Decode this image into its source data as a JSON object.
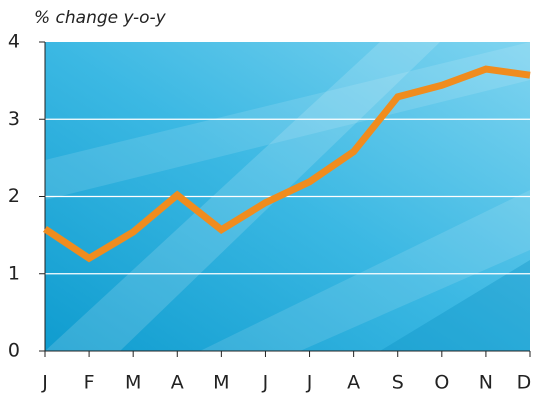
{
  "chart_data": {
    "type": "line",
    "ylabel": "% change y-o-y",
    "categories": [
      "J",
      "F",
      "M",
      "A",
      "M",
      "J",
      "J",
      "A",
      "S",
      "O",
      "N",
      "D"
    ],
    "series": [
      {
        "name": null,
        "color": "#f08c1e",
        "values": [
          1.58,
          1.2,
          1.54,
          2.02,
          1.57,
          1.92,
          2.19,
          2.58,
          3.29,
          3.44,
          3.65,
          3.57
        ]
      }
    ],
    "ylim": [
      0,
      4
    ],
    "yticks": [
      0,
      1,
      2,
      3,
      4
    ],
    "grid": true
  }
}
